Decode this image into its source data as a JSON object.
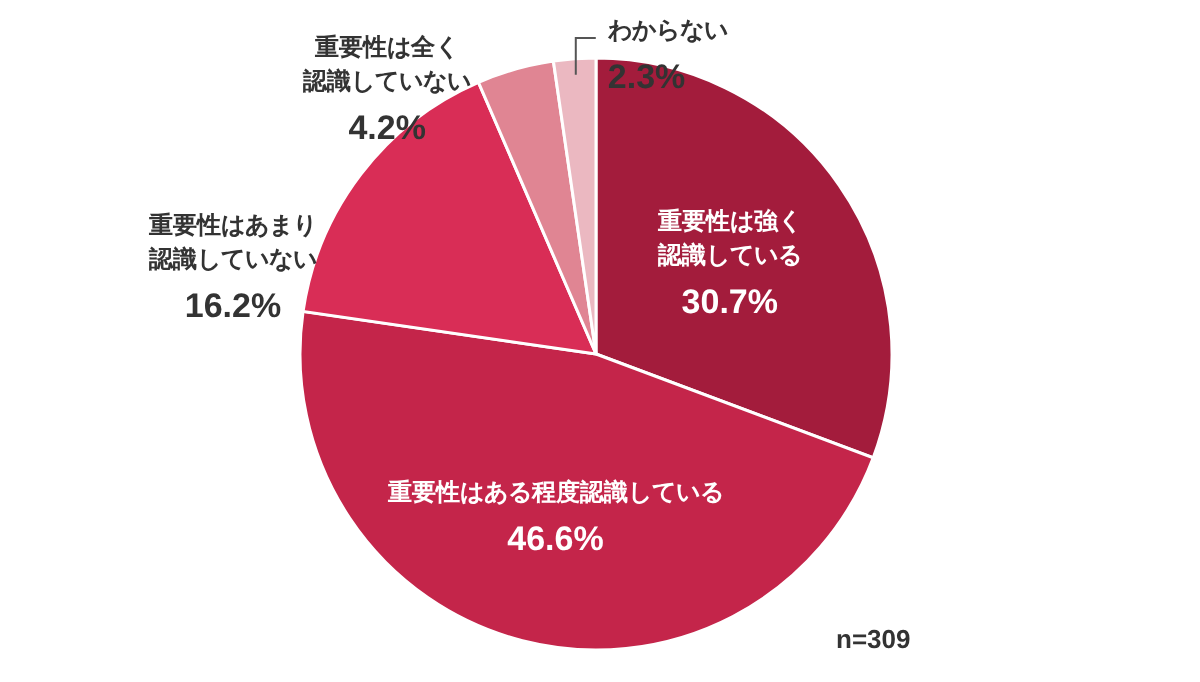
{
  "chart_data": {
    "type": "pie",
    "categories": [
      "重要性は強く認識している",
      "重要性はある程度認識している",
      "重要性はあまり認識していない",
      "重要性は全く認識していない",
      "わからない"
    ],
    "values": [
      30.7,
      46.6,
      16.2,
      4.2,
      2.3
    ],
    "value_labels": [
      "30.7%",
      "46.6%",
      "16.2%",
      "4.2%",
      "2.3%"
    ],
    "colors": [
      "#a31c3c",
      "#c4254a",
      "#d92d56",
      "#e08593",
      "#ebb8c1"
    ],
    "annotations": [
      "n=309"
    ]
  }
}
